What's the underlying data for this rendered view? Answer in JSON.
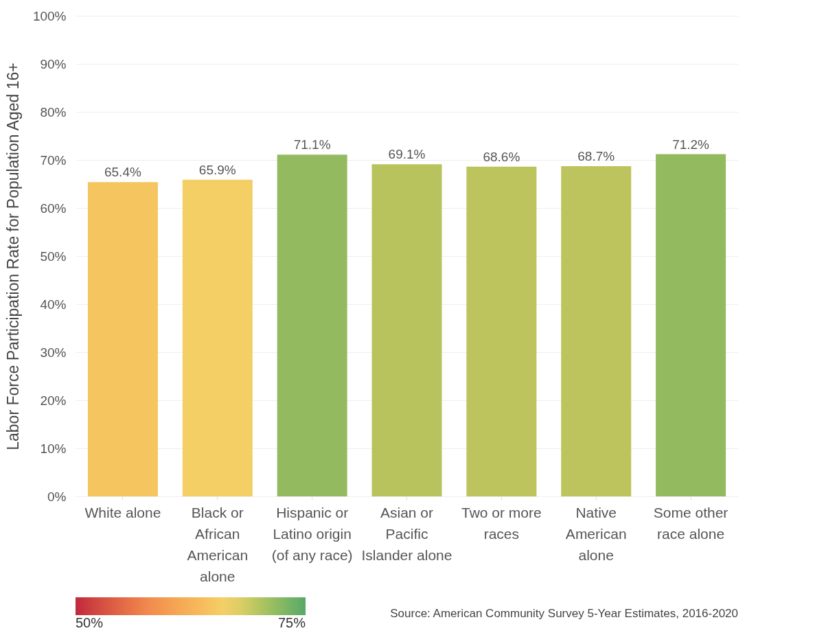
{
  "chart_data": {
    "type": "bar",
    "ylabel": "Labor Force Participation Rate for Population Aged 16+",
    "categories": [
      "White alone",
      "Black or African American alone",
      "Hispanic or Latino origin (of any race)",
      "Asian or Pacific Islander alone",
      "Two or more races",
      "Native American alone",
      "Some other race alone"
    ],
    "values": [
      65.4,
      65.9,
      71.1,
      69.1,
      68.6,
      68.7,
      71.2
    ],
    "value_labels": [
      "65.4%",
      "65.9%",
      "71.1%",
      "69.1%",
      "68.6%",
      "68.7%",
      "71.2%"
    ],
    "colors": [
      "#f5c55f",
      "#f3cf66",
      "#94ba60",
      "#b8c35d",
      "#bdc45e",
      "#bdc45e",
      "#94ba60"
    ],
    "ylim": [
      0,
      100
    ],
    "yticks": [
      {
        "value": 0,
        "label": "0%"
      },
      {
        "value": 10,
        "label": "10%"
      },
      {
        "value": 20,
        "label": "20%"
      },
      {
        "value": 30,
        "label": "30%"
      },
      {
        "value": 40,
        "label": "40%"
      },
      {
        "value": 50,
        "label": "50%"
      },
      {
        "value": 60,
        "label": "60%"
      },
      {
        "value": 70,
        "label": "70%"
      },
      {
        "value": 80,
        "label": "80%"
      },
      {
        "value": 90,
        "label": "90%"
      },
      {
        "value": 100,
        "label": "100%"
      }
    ],
    "grid": "y",
    "clim": [
      50,
      75
    ],
    "cticks": [
      {
        "value": 50,
        "label": "50%"
      },
      {
        "value": 75,
        "label": "75%"
      }
    ],
    "annotations": [
      "Source: American Community Survey 5-Year Estimates, 2016-2020"
    ]
  }
}
